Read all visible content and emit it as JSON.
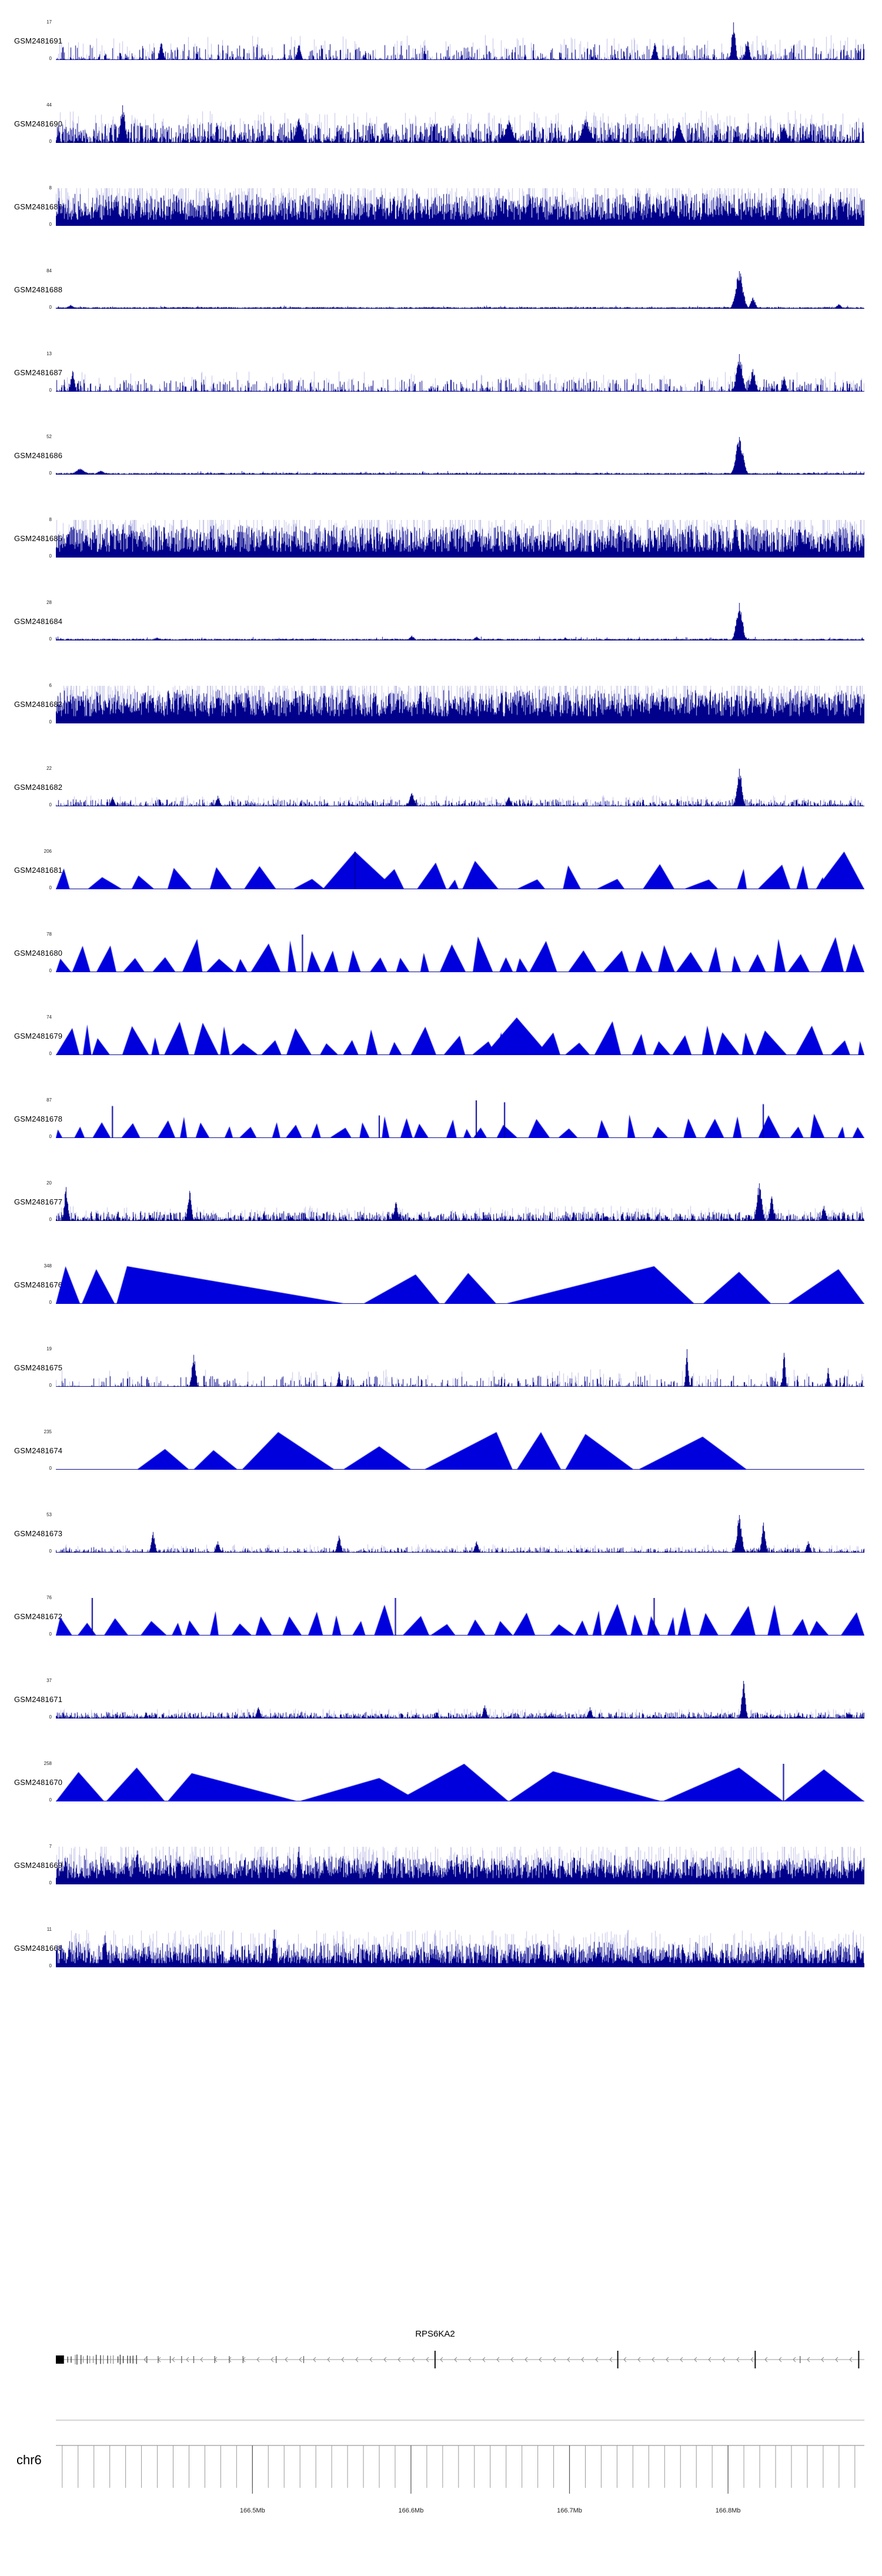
{
  "colors": {
    "bar": "#00008b",
    "bar_light": "rgba(115,115,205,0.45)",
    "fill": "#0000dd",
    "spike": "#0000a0",
    "gene_line": "#999999",
    "axis_line": "#808080",
    "tick": "#9a9a9a",
    "label": "#222222"
  },
  "chart_data": {
    "type": "area",
    "description": "Genome browser coverage tracks over chr6 RPS6KA2 locus",
    "x_axis": {
      "chrom_label": "chr6",
      "start_mb": 166.376,
      "end_mb": 166.886,
      "minor_tick_interval_mb": 0.01,
      "major_ticks_mb": [
        166.5,
        166.6,
        166.7,
        166.8
      ],
      "major_tick_labels": [
        "166.5Mb",
        "166.6Mb",
        "166.7Mb",
        "166.8Mb"
      ]
    },
    "gene_annotation": {
      "name": "RPS6KA2",
      "strand": "-",
      "label_x": 0.469,
      "start_utr_block": {
        "x0": 0.0,
        "x1": 0.01
      },
      "exon_cluster": {
        "x0": 0.013,
        "x1": 0.102,
        "count": 22
      },
      "small_exons": [
        0.112,
        0.126,
        0.141,
        0.155,
        0.17,
        0.196,
        0.214,
        0.231,
        0.272,
        0.306,
        0.92
      ],
      "large_exons": [
        0.469,
        0.695,
        0.865,
        0.993
      ],
      "arrow_spacing_px": 24
    },
    "tracks": [
      {
        "sample": "GSM2481691",
        "y_min": 0,
        "y_max": 17,
        "style": "bars",
        "profile": {
          "density": 0.5,
          "light": 0.2,
          "base": 0.03,
          "amp": 0.4,
          "gamma": 2.6
        },
        "peaks": [
          {
            "x": 0.838,
            "h": 1.0,
            "w": 3
          },
          {
            "x": 0.855,
            "h": 0.5,
            "w": 3
          },
          {
            "x": 0.74,
            "h": 0.45,
            "w": 3
          },
          {
            "x": 0.3,
            "h": 0.4,
            "w": 3
          },
          {
            "x": 0.13,
            "h": 0.45,
            "w": 3
          }
        ]
      },
      {
        "sample": "GSM2481690",
        "y_min": 0,
        "y_max": 44,
        "style": "bars",
        "profile": {
          "density": 0.85,
          "light": 0.3,
          "base": 0.06,
          "amp": 0.5,
          "gamma": 1.9
        },
        "peaks": [
          {
            "x": 0.082,
            "h": 1.0,
            "w": 4
          },
          {
            "x": 0.3,
            "h": 0.65,
            "w": 5
          },
          {
            "x": 0.56,
            "h": 0.6,
            "w": 6
          },
          {
            "x": 0.655,
            "h": 0.62,
            "w": 7
          },
          {
            "x": 0.77,
            "h": 0.55,
            "w": 5
          },
          {
            "x": 0.9,
            "h": 0.5,
            "w": 4
          }
        ]
      },
      {
        "sample": "GSM2481689",
        "y_min": 0,
        "y_max": 8,
        "style": "bars",
        "profile": {
          "density": 0.97,
          "light": 0.45,
          "base": 0.3,
          "amp": 0.6,
          "gamma": 1.2
        },
        "peaks": [
          {
            "x": 0.9,
            "h": 1.0,
            "w": 3
          },
          {
            "x": 0.97,
            "h": 0.9,
            "w": 3
          }
        ]
      },
      {
        "sample": "GSM2481688",
        "y_min": 0,
        "y_max": 84,
        "style": "flat",
        "profile": {
          "noise": 0.02
        },
        "peaks": [
          {
            "x": 0.018,
            "h": 0.1,
            "w": 5
          },
          {
            "x": 0.845,
            "h": 1.0,
            "w": 6
          },
          {
            "x": 0.862,
            "h": 0.3,
            "w": 4
          },
          {
            "x": 0.968,
            "h": 0.12,
            "w": 4
          }
        ]
      },
      {
        "sample": "GSM2481687",
        "y_min": 0,
        "y_max": 13,
        "style": "bars",
        "profile": {
          "density": 0.45,
          "light": 0.18,
          "base": 0.03,
          "amp": 0.32,
          "gamma": 2.2
        },
        "peaks": [
          {
            "x": 0.02,
            "h": 0.55,
            "w": 3
          },
          {
            "x": 0.845,
            "h": 1.0,
            "w": 5
          },
          {
            "x": 0.862,
            "h": 0.6,
            "w": 4
          },
          {
            "x": 0.9,
            "h": 0.4,
            "w": 3
          }
        ]
      },
      {
        "sample": "GSM2481686",
        "y_min": 0,
        "y_max": 52,
        "style": "flat",
        "profile": {
          "noise": 0.025
        },
        "peaks": [
          {
            "x": 0.03,
            "h": 0.16,
            "w": 8
          },
          {
            "x": 0.055,
            "h": 0.1,
            "w": 6
          },
          {
            "x": 0.845,
            "h": 1.0,
            "w": 6
          },
          {
            "x": 0.345,
            "h": 0.05,
            "w": 4
          }
        ]
      },
      {
        "sample": "GSM2481685",
        "y_min": 0,
        "y_max": 8,
        "style": "bars",
        "profile": {
          "density": 0.96,
          "light": 0.45,
          "base": 0.28,
          "amp": 0.62,
          "gamma": 1.25
        },
        "peaks": [
          {
            "x": 0.84,
            "h": 1.0,
            "w": 3
          },
          {
            "x": 0.92,
            "h": 0.95,
            "w": 3
          }
        ]
      },
      {
        "sample": "GSM2481684",
        "y_min": 0,
        "y_max": 28,
        "style": "flat",
        "profile": {
          "noise": 0.03
        },
        "peaks": [
          {
            "x": 0.845,
            "h": 1.0,
            "w": 5
          },
          {
            "x": 0.44,
            "h": 0.13,
            "w": 4
          },
          {
            "x": 0.52,
            "h": 0.1,
            "w": 4
          },
          {
            "x": 0.125,
            "h": 0.08,
            "w": 4
          },
          {
            "x": 0.63,
            "h": 0.08,
            "w": 3
          }
        ]
      },
      {
        "sample": "GSM2481683",
        "y_min": 0,
        "y_max": 6,
        "style": "bars",
        "profile": {
          "density": 0.97,
          "light": 0.5,
          "base": 0.35,
          "amp": 0.58,
          "gamma": 1.1
        },
        "peaks": [
          {
            "x": 0.45,
            "h": 1.0,
            "w": 3
          },
          {
            "x": 0.2,
            "h": 0.9,
            "w": 3
          },
          {
            "x": 0.75,
            "h": 0.9,
            "w": 3
          }
        ]
      },
      {
        "sample": "GSM2481682",
        "y_min": 0,
        "y_max": 22,
        "style": "bars",
        "profile": {
          "density": 0.6,
          "light": 0.18,
          "base": 0.04,
          "amp": 0.16,
          "gamma": 2.0
        },
        "peaks": [
          {
            "x": 0.845,
            "h": 1.0,
            "w": 4
          },
          {
            "x": 0.44,
            "h": 0.35,
            "w": 4
          },
          {
            "x": 0.2,
            "h": 0.28,
            "w": 3
          },
          {
            "x": 0.07,
            "h": 0.25,
            "w": 3
          },
          {
            "x": 0.56,
            "h": 0.25,
            "w": 3
          }
        ]
      },
      {
        "sample": "GSM2481681",
        "y_min": 0,
        "y_max": 206,
        "style": "triangles",
        "profile": {
          "auto": true,
          "wmin": 0.012,
          "wmax": 0.05,
          "hmin": 0.25,
          "hmax": 0.85,
          "gap": 0.012
        },
        "tris": [
          {
            "a": 0.33,
            "p": 0.37,
            "b": 0.42,
            "h": 1.0
          },
          {
            "a": 0.94,
            "p": 0.975,
            "b": 1.0,
            "h": 1.0
          }
        ],
        "spikes": [
          {
            "x": 0.37,
            "h": 1.0
          }
        ]
      },
      {
        "sample": "GSM2481680",
        "y_min": 0,
        "y_max": 78,
        "style": "triangles",
        "profile": {
          "auto": true,
          "wmin": 0.01,
          "wmax": 0.038,
          "hmin": 0.35,
          "hmax": 0.95,
          "gap": 0.007
        },
        "spikes": [
          {
            "x": 0.305,
            "h": 1.0
          }
        ]
      },
      {
        "sample": "GSM2481679",
        "y_min": 0,
        "y_max": 74,
        "style": "triangles",
        "profile": {
          "auto": true,
          "wmin": 0.01,
          "wmax": 0.04,
          "hmin": 0.3,
          "hmax": 0.9,
          "gap": 0.008
        },
        "tris": [
          {
            "a": 0.53,
            "p": 0.57,
            "b": 0.61,
            "h": 1.0
          }
        ]
      },
      {
        "sample": "GSM2481678",
        "y_min": 0,
        "y_max": 87,
        "style": "triangles",
        "profile": {
          "auto": true,
          "wmin": 0.008,
          "wmax": 0.028,
          "hmin": 0.2,
          "hmax": 0.65,
          "gap": 0.012
        },
        "spikes": [
          {
            "x": 0.07,
            "h": 0.85
          },
          {
            "x": 0.52,
            "h": 1.0
          },
          {
            "x": 0.555,
            "h": 0.95
          },
          {
            "x": 0.875,
            "h": 0.9
          },
          {
            "x": 0.4,
            "h": 0.6
          }
        ]
      },
      {
        "sample": "GSM2481677",
        "y_min": 0,
        "y_max": 20,
        "style": "bars",
        "profile": {
          "density": 0.75,
          "light": 0.22,
          "base": 0.05,
          "amp": 0.22,
          "gamma": 2.0
        },
        "peaks": [
          {
            "x": 0.012,
            "h": 0.9,
            "w": 3
          },
          {
            "x": 0.165,
            "h": 0.8,
            "w": 3
          },
          {
            "x": 0.42,
            "h": 0.5,
            "w": 3
          },
          {
            "x": 0.87,
            "h": 1.0,
            "w": 4
          },
          {
            "x": 0.885,
            "h": 0.65,
            "w": 3
          },
          {
            "x": 0.95,
            "h": 0.4,
            "w": 3
          }
        ]
      },
      {
        "sample": "GSM2481676",
        "y_min": 0,
        "y_max": 348,
        "style": "triangles",
        "profile": {
          "auto": false
        },
        "tris": [
          {
            "a": 0.0,
            "p": 0.012,
            "b": 0.03,
            "h": 1.0
          },
          {
            "a": 0.032,
            "p": 0.05,
            "b": 0.073,
            "h": 0.92
          },
          {
            "a": 0.075,
            "p": 0.088,
            "b": 0.36,
            "h": 1.0
          },
          {
            "a": 0.38,
            "p": 0.445,
            "b": 0.475,
            "h": 0.78
          },
          {
            "a": 0.48,
            "p": 0.51,
            "b": 0.545,
            "h": 0.82
          },
          {
            "a": 0.555,
            "p": 0.74,
            "b": 0.79,
            "h": 1.0
          },
          {
            "a": 0.8,
            "p": 0.845,
            "b": 0.885,
            "h": 0.85
          },
          {
            "a": 0.905,
            "p": 0.968,
            "b": 1.0,
            "h": 0.92
          }
        ]
      },
      {
        "sample": "GSM2481675",
        "y_min": 0,
        "y_max": 19,
        "style": "bars",
        "profile": {
          "density": 0.3,
          "light": 0.1,
          "base": 0.02,
          "amp": 0.28,
          "gamma": 2.0
        },
        "peaks": [
          {
            "x": 0.17,
            "h": 0.85,
            "w": 3
          },
          {
            "x": 0.78,
            "h": 1.0,
            "w": 2
          },
          {
            "x": 0.9,
            "h": 0.9,
            "w": 2
          },
          {
            "x": 0.955,
            "h": 0.5,
            "w": 2
          },
          {
            "x": 0.35,
            "h": 0.4,
            "w": 2
          }
        ]
      },
      {
        "sample": "GSM2481674",
        "y_min": 0,
        "y_max": 235,
        "style": "triangles",
        "profile": {
          "auto": false
        },
        "tris": [
          {
            "a": 0.1,
            "p": 0.135,
            "b": 0.165,
            "h": 0.55
          },
          {
            "a": 0.17,
            "p": 0.195,
            "b": 0.225,
            "h": 0.52
          },
          {
            "a": 0.23,
            "p": 0.275,
            "b": 0.345,
            "h": 1.0
          },
          {
            "a": 0.355,
            "p": 0.4,
            "b": 0.44,
            "h": 0.62
          },
          {
            "a": 0.455,
            "p": 0.545,
            "b": 0.565,
            "h": 1.0
          },
          {
            "a": 0.57,
            "p": 0.6,
            "b": 0.625,
            "h": 1.0
          },
          {
            "a": 0.63,
            "p": 0.655,
            "b": 0.715,
            "h": 0.95
          },
          {
            "a": 0.72,
            "p": 0.8,
            "b": 0.855,
            "h": 0.88
          }
        ]
      },
      {
        "sample": "GSM2481673",
        "y_min": 0,
        "y_max": 53,
        "style": "bars",
        "profile": {
          "density": 0.5,
          "light": 0.15,
          "base": 0.03,
          "amp": 0.12,
          "gamma": 2.0
        },
        "peaks": [
          {
            "x": 0.12,
            "h": 0.55,
            "w": 3
          },
          {
            "x": 0.2,
            "h": 0.3,
            "w": 3
          },
          {
            "x": 0.35,
            "h": 0.45,
            "w": 3
          },
          {
            "x": 0.52,
            "h": 0.3,
            "w": 3
          },
          {
            "x": 0.845,
            "h": 1.0,
            "w": 4
          },
          {
            "x": 0.875,
            "h": 0.8,
            "w": 3
          },
          {
            "x": 0.93,
            "h": 0.3,
            "w": 3
          }
        ]
      },
      {
        "sample": "GSM2481672",
        "y_min": 0,
        "y_max": 76,
        "style": "triangles",
        "profile": {
          "auto": true,
          "wmin": 0.01,
          "wmax": 0.034,
          "hmin": 0.3,
          "hmax": 0.85,
          "gap": 0.009
        },
        "spikes": [
          {
            "x": 0.045,
            "h": 1.0
          },
          {
            "x": 0.42,
            "h": 1.0
          },
          {
            "x": 0.74,
            "h": 1.0
          }
        ]
      },
      {
        "sample": "GSM2481671",
        "y_min": 0,
        "y_max": 37,
        "style": "bars",
        "profile": {
          "density": 0.78,
          "light": 0.2,
          "base": 0.04,
          "amp": 0.14,
          "gamma": 2.0
        },
        "peaks": [
          {
            "x": 0.85,
            "h": 1.0,
            "w": 3
          },
          {
            "x": 0.53,
            "h": 0.35,
            "w": 3
          },
          {
            "x": 0.25,
            "h": 0.3,
            "w": 3
          },
          {
            "x": 0.66,
            "h": 0.3,
            "w": 3
          }
        ]
      },
      {
        "sample": "GSM2481670",
        "y_min": 0,
        "y_max": 258,
        "style": "triangles",
        "profile": {
          "auto": false
        },
        "tris": [
          {
            "a": 0.0,
            "p": 0.028,
            "b": 0.06,
            "h": 0.78
          },
          {
            "a": 0.062,
            "p": 0.1,
            "b": 0.135,
            "h": 0.9
          },
          {
            "a": 0.138,
            "p": 0.168,
            "b": 0.3,
            "h": 0.75
          },
          {
            "a": 0.3,
            "p": 0.4,
            "b": 0.45,
            "h": 0.62
          },
          {
            "a": 0.42,
            "p": 0.505,
            "b": 0.56,
            "h": 1.0
          },
          {
            "a": 0.56,
            "p": 0.615,
            "b": 0.75,
            "h": 0.8
          },
          {
            "a": 0.75,
            "p": 0.845,
            "b": 0.9,
            "h": 0.9
          },
          {
            "a": 0.9,
            "p": 0.95,
            "b": 1.0,
            "h": 0.85
          }
        ],
        "spikes": [
          {
            "x": 0.9,
            "h": 1.0
          }
        ]
      },
      {
        "sample": "GSM2481669",
        "y_min": 0,
        "y_max": 7,
        "style": "bars",
        "profile": {
          "density": 0.96,
          "light": 0.42,
          "base": 0.3,
          "amp": 0.5,
          "gamma": 1.25
        },
        "peaks": [
          {
            "x": 0.3,
            "h": 1.0,
            "w": 3
          },
          {
            "x": 0.1,
            "h": 0.9,
            "w": 3
          }
        ]
      },
      {
        "sample": "GSM2481668",
        "y_min": 0,
        "y_max": 11,
        "style": "bars",
        "profile": {
          "density": 0.9,
          "light": 0.38,
          "base": 0.2,
          "amp": 0.5,
          "gamma": 1.5
        },
        "peaks": [
          {
            "x": 0.27,
            "h": 1.0,
            "w": 3
          },
          {
            "x": 0.06,
            "h": 0.85,
            "w": 3
          },
          {
            "x": 0.6,
            "h": 0.7,
            "w": 3
          }
        ]
      }
    ]
  }
}
